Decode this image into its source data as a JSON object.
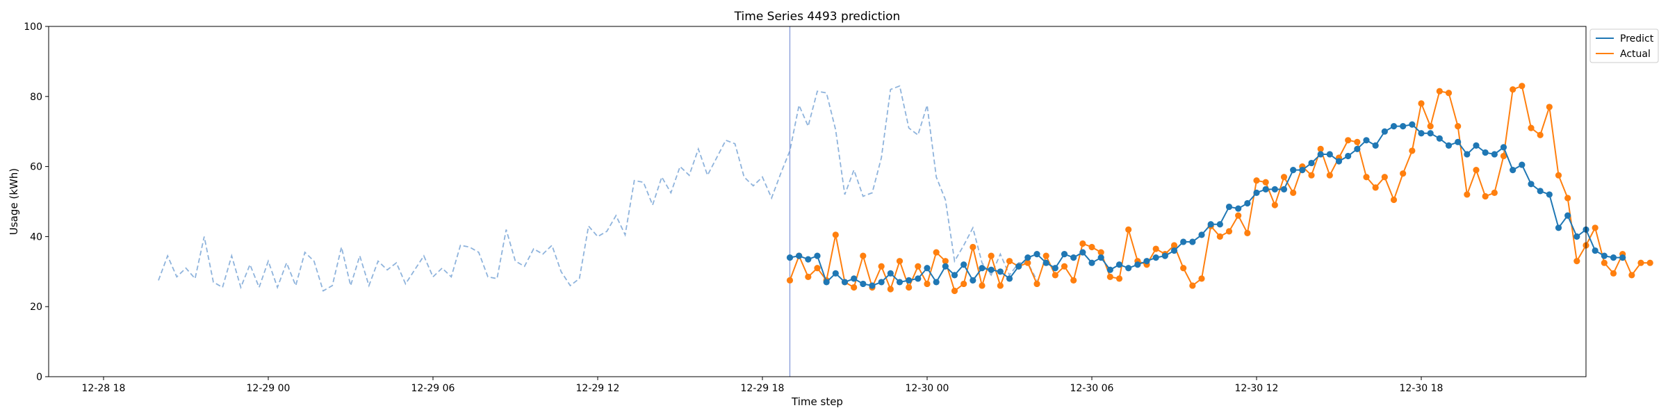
{
  "chart_data": {
    "type": "line",
    "title": "Time Series 4493 prediction",
    "xlabel": "Time step",
    "ylabel": "Usage (kWh)",
    "ylim": [
      0,
      100
    ],
    "yticks": [
      0,
      20,
      40,
      60,
      80,
      100
    ],
    "xlim": [
      "2012-12-28 16:00",
      "2012-12-31 00:00"
    ],
    "xticks": [
      "12-28 18",
      "12-29 00",
      "12-29 06",
      "12-29 12",
      "12-29 18",
      "12-30 00",
      "12-30 06",
      "12-30 12",
      "12-30 18"
    ],
    "grid": false,
    "legend_position": "upper-right-outside",
    "history_start": "2012-12-28 20:00",
    "interval_minutes": 20,
    "forecast_start": "2012-12-29 19:00",
    "history": [
      27.5,
      34.5,
      28.5,
      31,
      28,
      40,
      27,
      25.5,
      34.5,
      25.5,
      32,
      25.5,
      33,
      25.5,
      32.5,
      26,
      35.5,
      33,
      24.5,
      26,
      37,
      26,
      34.5,
      26,
      33,
      30.5,
      32.5,
      26.5,
      30.5,
      34.5,
      28.5,
      31,
      28.5,
      37.5,
      37,
      35.5,
      28.5,
      28,
      42,
      33,
      31.5,
      36.5,
      35,
      37.5,
      30,
      26,
      28,
      43,
      40,
      41.5,
      46,
      40.5,
      56,
      55.5,
      49,
      57,
      52.5,
      60,
      57.5,
      65,
      57.5,
      62.5,
      67.5,
      66.5,
      57,
      54.5,
      57,
      51,
      58,
      64.5,
      77.5,
      71.5,
      81.5,
      81,
      70.5,
      52,
      59,
      51.5,
      52.5,
      62.5,
      82,
      83,
      71,
      69,
      77.5,
      57,
      50.5,
      33,
      37.5,
      42.5,
      32.5,
      29,
      35,
      29,
      32.5,
      32.5,
      27.5
    ],
    "series": [
      {
        "name": "Predict",
        "color": "#1f77b4",
        "values": [
          34,
          34.5,
          33.5,
          34.5,
          27,
          29.5,
          27,
          28,
          26.5,
          26,
          27,
          29.5,
          27,
          27.5,
          28,
          31,
          27,
          31.5,
          29,
          32,
          27.5,
          31,
          30.5,
          30,
          28,
          31.5,
          34,
          35,
          32.5,
          31,
          35,
          34,
          35.5,
          32.5,
          34,
          30.5,
          32,
          31,
          32,
          33,
          34,
          34.5,
          36,
          38.5,
          38.5,
          40.5,
          43.5,
          43.5,
          48.5,
          48,
          49.5,
          52.5,
          53.5,
          53.5,
          53.5,
          59,
          59,
          61,
          63.5,
          63.5,
          61.5,
          63,
          65,
          67.5,
          66,
          70,
          71.5,
          71.5,
          72,
          69.5,
          69.5,
          68,
          66,
          67,
          63.5,
          66,
          64,
          63.5,
          65.5,
          59,
          60.5,
          55,
          53,
          52,
          42.5,
          46,
          40,
          42,
          36,
          34.5,
          34,
          34
        ]
      },
      {
        "name": "Actual",
        "color": "#ff7f0e",
        "values": [
          27.5,
          34.5,
          28.5,
          31,
          27.5,
          40.5,
          27,
          25.5,
          34.5,
          25.5,
          31.5,
          25,
          33,
          25.5,
          31.5,
          26.5,
          35.5,
          33,
          24.5,
          26.5,
          37,
          26,
          34.5,
          26,
          33,
          31.5,
          32.5,
          26.5,
          34.5,
          29,
          31.5,
          27.5,
          38,
          37,
          35.5,
          28.5,
          28,
          42,
          33,
          32,
          36.5,
          35,
          37.5,
          31,
          26,
          28,
          43,
          40,
          41.5,
          46,
          41,
          56,
          55.5,
          49,
          57,
          52.5,
          60,
          57.5,
          65,
          57.5,
          62.5,
          67.5,
          67,
          57,
          54,
          57,
          50.5,
          58,
          64.5,
          78,
          71.5,
          81.5,
          81,
          71.5,
          52,
          59,
          51.5,
          52.5,
          63,
          82,
          83,
          71,
          69,
          77,
          57.5,
          51,
          33,
          37.5,
          42.5,
          32.5,
          29.5,
          35,
          29,
          32.5,
          32.5
        ]
      }
    ]
  }
}
